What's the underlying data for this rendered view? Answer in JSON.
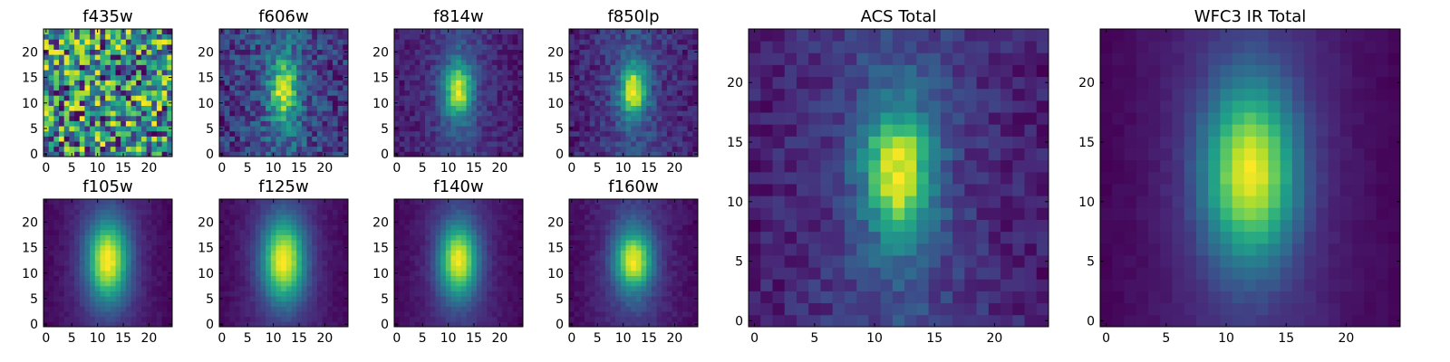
{
  "chart_data": [
    {
      "type": "heatmap",
      "title": "f435w",
      "x_ticks": [
        0,
        5,
        10,
        15,
        20
      ],
      "y_ticks": [
        0,
        5,
        10,
        15,
        20
      ],
      "grid_size": 25,
      "xlim": [
        -0.5,
        24.5
      ],
      "ylim": [
        -0.5,
        24.5
      ],
      "source": {
        "kind": "noise",
        "sx": 0,
        "sy": 0,
        "peak": 0,
        "noise": 0.35,
        "bg": 0.55,
        "seed": 11,
        "double": false
      }
    },
    {
      "type": "heatmap",
      "title": "f606w",
      "x_ticks": [
        0,
        5,
        10,
        15,
        20
      ],
      "y_ticks": [
        0,
        5,
        10,
        15,
        20
      ],
      "grid_size": 25,
      "xlim": [
        -0.5,
        24.5
      ],
      "ylim": [
        -0.5,
        24.5
      ],
      "source": {
        "kind": "galaxy",
        "sx": 1.8,
        "sy": 5.0,
        "peak": 0.85,
        "noise": 0.22,
        "bg": 0.25,
        "seed": 23,
        "double": true
      }
    },
    {
      "type": "heatmap",
      "title": "f814w",
      "x_ticks": [
        0,
        5,
        10,
        15,
        20
      ],
      "y_ticks": [
        0,
        5,
        10,
        15,
        20
      ],
      "grid_size": 25,
      "xlim": [
        -0.5,
        24.5
      ],
      "ylim": [
        -0.5,
        24.5
      ],
      "source": {
        "kind": "galaxy",
        "sx": 1.9,
        "sy": 4.3,
        "peak": 0.95,
        "noise": 0.1,
        "bg": 0.18,
        "seed": 37,
        "double": true
      }
    },
    {
      "type": "heatmap",
      "title": "f850lp",
      "x_ticks": [
        0,
        5,
        10,
        15,
        20
      ],
      "y_ticks": [
        0,
        5,
        10,
        15,
        20
      ],
      "grid_size": 25,
      "xlim": [
        -0.5,
        24.5
      ],
      "ylim": [
        -0.5,
        24.5
      ],
      "source": {
        "kind": "galaxy",
        "sx": 1.8,
        "sy": 4.0,
        "peak": 0.95,
        "noise": 0.12,
        "bg": 0.16,
        "seed": 41,
        "double": true
      }
    },
    {
      "type": "heatmap",
      "title": "f105w",
      "x_ticks": [
        0,
        5,
        10,
        15,
        20
      ],
      "y_ticks": [
        0,
        5,
        10,
        15,
        20
      ],
      "grid_size": 25,
      "xlim": [
        -0.5,
        24.5
      ],
      "ylim": [
        -0.5,
        24.5
      ],
      "source": {
        "kind": "galaxy",
        "sx": 2.8,
        "sy": 5.5,
        "peak": 1.0,
        "noise": 0.03,
        "bg": 0.1,
        "seed": 53,
        "double": false
      }
    },
    {
      "type": "heatmap",
      "title": "f125w",
      "x_ticks": [
        0,
        5,
        10,
        15,
        20
      ],
      "y_ticks": [
        0,
        5,
        10,
        15,
        20
      ],
      "grid_size": 25,
      "xlim": [
        -0.5,
        24.5
      ],
      "ylim": [
        -0.5,
        24.5
      ],
      "source": {
        "kind": "galaxy",
        "sx": 2.9,
        "sy": 5.6,
        "peak": 1.0,
        "noise": 0.03,
        "bg": 0.1,
        "seed": 59,
        "double": false
      }
    },
    {
      "type": "heatmap",
      "title": "f140w",
      "x_ticks": [
        0,
        5,
        10,
        15,
        20
      ],
      "y_ticks": [
        0,
        5,
        10,
        15,
        20
      ],
      "grid_size": 25,
      "xlim": [
        -0.5,
        24.5
      ],
      "ylim": [
        -0.5,
        24.5
      ],
      "source": {
        "kind": "galaxy",
        "sx": 2.6,
        "sy": 5.0,
        "peak": 1.0,
        "noise": 0.03,
        "bg": 0.05,
        "seed": 61,
        "double": false
      }
    },
    {
      "type": "heatmap",
      "title": "f160w",
      "x_ticks": [
        0,
        5,
        10,
        15,
        20
      ],
      "y_ticks": [
        0,
        5,
        10,
        15,
        20
      ],
      "grid_size": 25,
      "xlim": [
        -0.5,
        24.5
      ],
      "ylim": [
        -0.5,
        24.5
      ],
      "source": {
        "kind": "galaxy",
        "sx": 2.6,
        "sy": 5.0,
        "peak": 1.0,
        "noise": 0.04,
        "bg": 0.04,
        "seed": 67,
        "double": true
      }
    },
    {
      "type": "heatmap",
      "title": "ACS Total",
      "x_ticks": [
        0,
        5,
        10,
        15,
        20
      ],
      "y_ticks": [
        0,
        5,
        10,
        15,
        20
      ],
      "grid_size": 25,
      "xlim": [
        -0.5,
        24.5
      ],
      "ylim": [
        -0.5,
        24.5
      ],
      "source": {
        "kind": "galaxy",
        "sx": 2.0,
        "sy": 4.3,
        "peak": 0.92,
        "noise": 0.1,
        "bg": 0.16,
        "seed": 71,
        "double": true
      }
    },
    {
      "type": "heatmap",
      "title": "WFC3 IR Total",
      "x_ticks": [
        0,
        5,
        10,
        15,
        20
      ],
      "y_ticks": [
        0,
        5,
        10,
        15,
        20
      ],
      "grid_size": 25,
      "xlim": [
        -0.5,
        24.5
      ],
      "ylim": [
        -0.5,
        24.5
      ],
      "source": {
        "kind": "galaxy",
        "sx": 2.7,
        "sy": 5.2,
        "peak": 1.0,
        "noise": 0.02,
        "bg": 0.06,
        "seed": 79,
        "double": false
      }
    }
  ],
  "colormap": "viridis",
  "colormap_stops": [
    "#440154",
    "#482878",
    "#3e4989",
    "#31688e",
    "#26828e",
    "#1f9e89",
    "#35b779",
    "#6ece58",
    "#b5de2b",
    "#fde725"
  ]
}
